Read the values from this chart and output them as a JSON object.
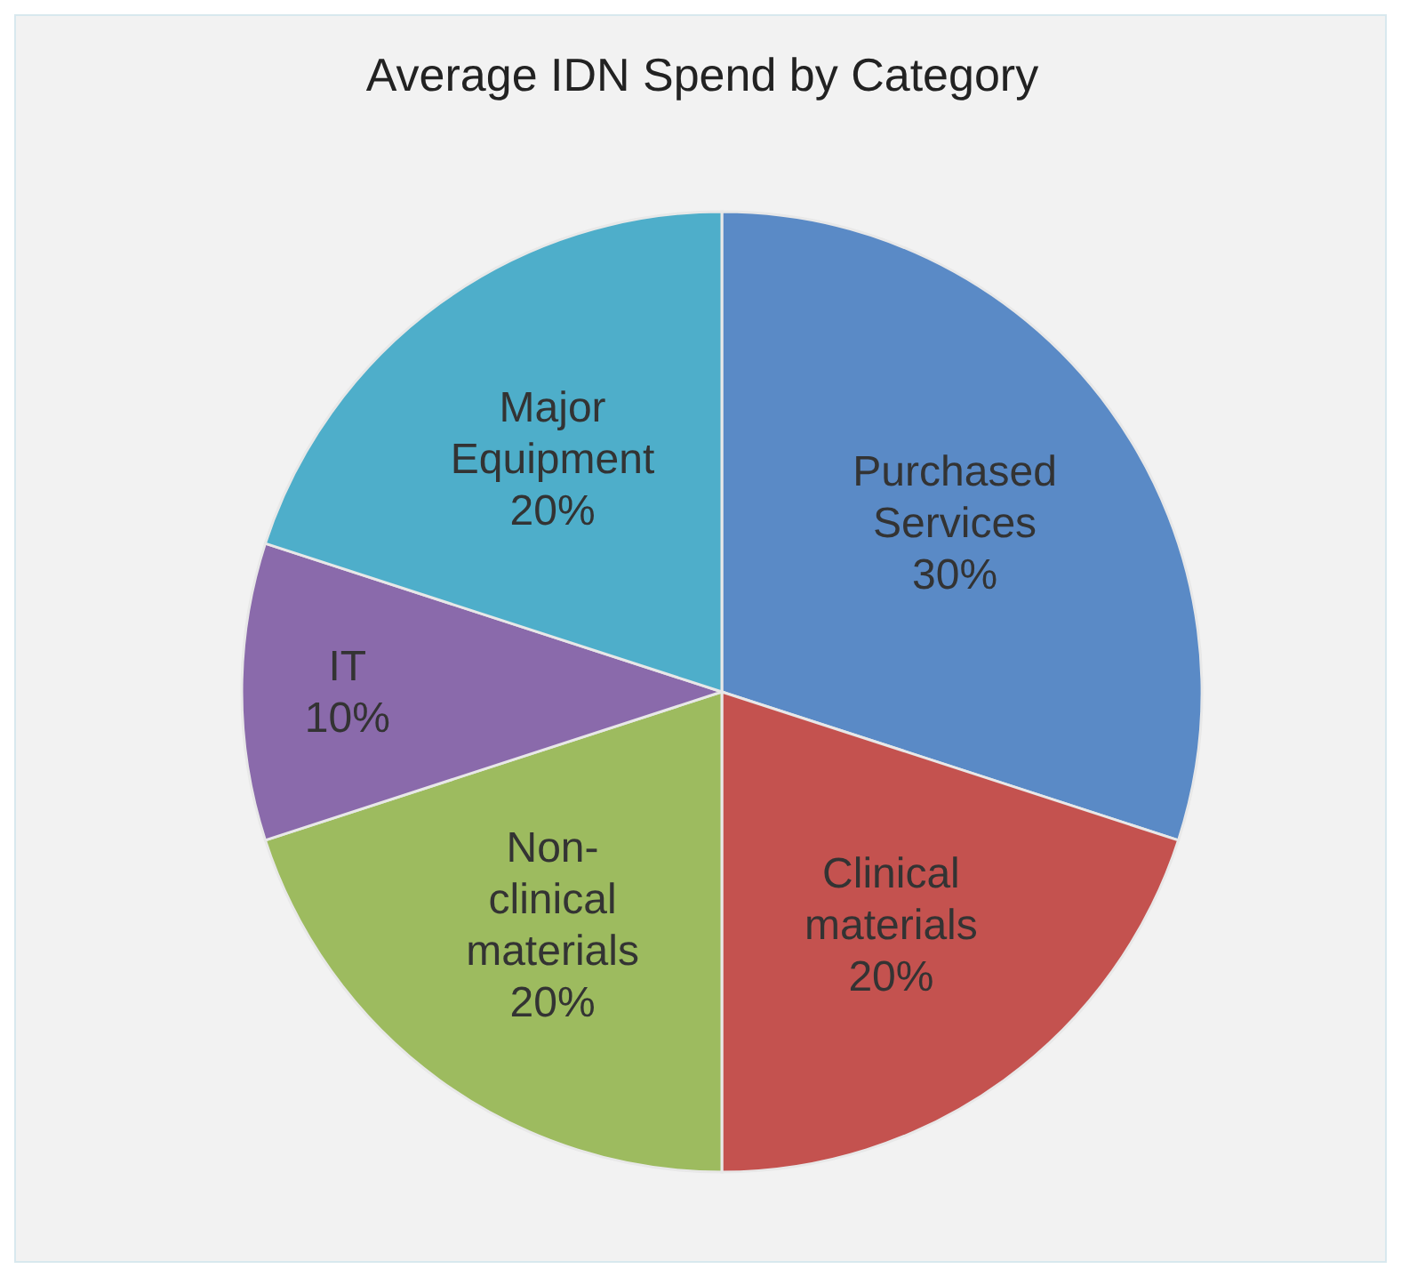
{
  "chart_data": {
    "type": "pie",
    "title": "Average IDN Spend by Category",
    "categories": [
      "Purchased Services",
      "Clinical materials",
      "Non-clinical materials",
      "IT",
      "Major Equipment"
    ],
    "values": [
      30,
      20,
      20,
      10,
      20
    ],
    "value_labels": [
      "30%",
      "20%",
      "20%",
      "10%",
      "20%"
    ],
    "colors": [
      "#5a8ac6",
      "#c4524f",
      "#9dbb5f",
      "#8a6aab",
      "#4eaeca"
    ],
    "legend": false
  }
}
